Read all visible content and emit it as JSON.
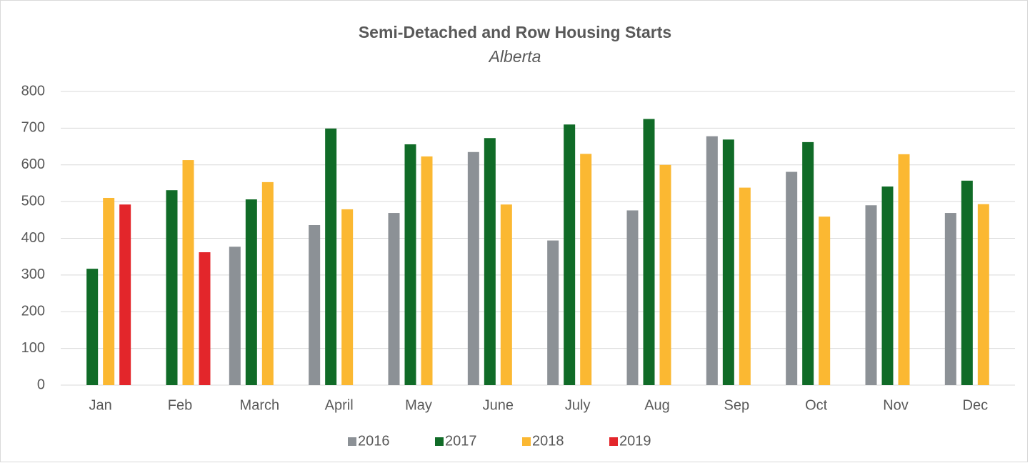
{
  "chart_data": {
    "type": "bar",
    "title": "Semi-Detached and Row Housing Starts",
    "subtitle": "Alberta",
    "categories": [
      "Jan",
      "Feb",
      "March",
      "April",
      "May",
      "June",
      "July",
      "Aug",
      "Sep",
      "Oct",
      "Nov",
      "Dec"
    ],
    "series": [
      {
        "name": "2016",
        "color": "#8c9196",
        "values": [
          null,
          null,
          377,
          436,
          469,
          635,
          394,
          476,
          678,
          581,
          490,
          469
        ]
      },
      {
        "name": "2017",
        "color": "#106b27",
        "values": [
          317,
          531,
          506,
          699,
          656,
          673,
          710,
          725,
          669,
          662,
          541,
          557
        ]
      },
      {
        "name": "2018",
        "color": "#fbb832",
        "values": [
          510,
          613,
          553,
          479,
          623,
          492,
          630,
          600,
          538,
          459,
          629,
          493
        ]
      },
      {
        "name": "2019",
        "color": "#e3262b",
        "values": [
          492,
          362,
          null,
          null,
          null,
          null,
          null,
          null,
          null,
          null,
          null,
          null
        ]
      }
    ],
    "ylim": [
      0,
      800
    ],
    "yticks": [
      0,
      100,
      200,
      300,
      400,
      500,
      600,
      700,
      800
    ],
    "grid": true,
    "legend": "bottom"
  }
}
